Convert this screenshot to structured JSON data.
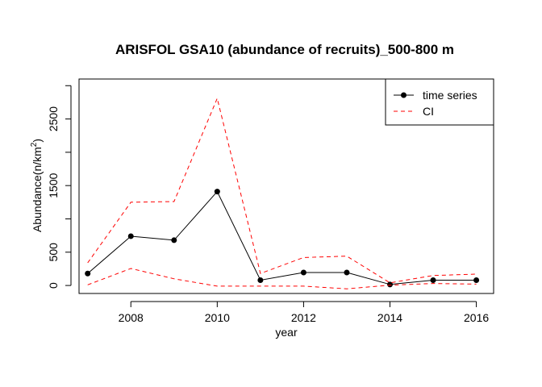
{
  "chart_data": {
    "type": "line",
    "title": "ARISFOL GSA10 (abundance of recruits)_500-800 m",
    "xlabel": "year",
    "ylabel_main": "Abundance(n/km",
    "ylabel_sup": "2",
    "ylabel_close": ")",
    "xlim": [
      2006.8,
      2016.4
    ],
    "ylim": [
      -120,
      3100
    ],
    "x_ticks": [
      2008,
      2010,
      2012,
      2014,
      2016
    ],
    "x_tick_labels": [
      "2008",
      "2010",
      "2012",
      "2014",
      "2016"
    ],
    "y_ticks": [
      0,
      500,
      1000,
      1500,
      2000,
      2500,
      3000
    ],
    "y_tick_labels": [
      "0",
      "500",
      "",
      "1500",
      "",
      "2500",
      ""
    ],
    "x": [
      2007,
      2008,
      2009,
      2010,
      2011,
      2012,
      2013,
      2014,
      2015,
      2016
    ],
    "series": [
      {
        "name": "time series",
        "style": "line-points",
        "color": "#000000",
        "values": [
          180,
          740,
          680,
          1410,
          80,
          195,
          195,
          15,
          80,
          80
        ]
      },
      {
        "name": "CI",
        "style": "dashed",
        "color": "#ff0000",
        "values": [
          340,
          1250,
          1260,
          2810,
          180,
          420,
          440,
          40,
          150,
          170
        ]
      },
      {
        "name": "",
        "style": "dashed",
        "color": "#ff0000",
        "values": [
          10,
          255,
          100,
          -10,
          -10,
          -10,
          -50,
          5,
          30,
          20
        ]
      }
    ],
    "grid": false,
    "legend_position": "top-right"
  }
}
